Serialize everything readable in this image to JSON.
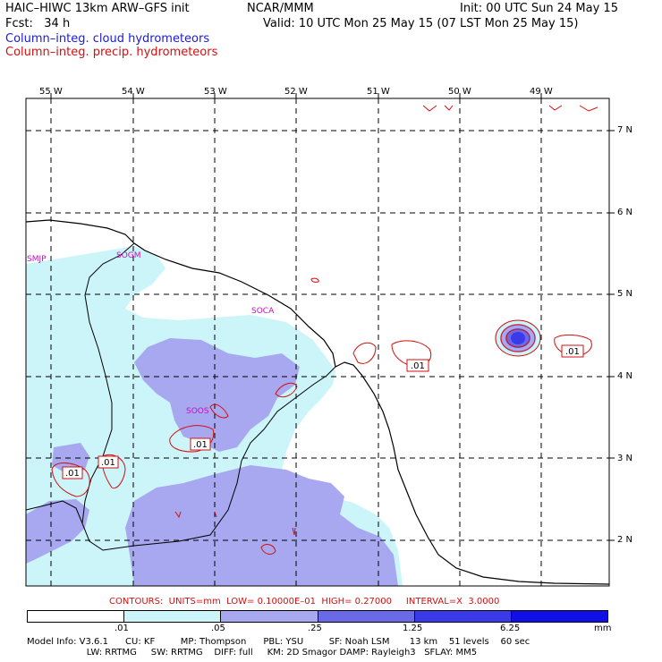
{
  "header": {
    "model": "HAIC–HIWC 13km ARW–GFS init",
    "org": "NCAR/MMM",
    "init": "Init: 00 UTC Sun 24 May 15",
    "fcst": "Fcst:   34 h",
    "valid": "Valid: 10 UTC Mon 25 May 15 (07 LST Mon 25 May 15)",
    "field1": "Column–integ. cloud hydrometeors",
    "field2": "Column–integ. precip. hydrometeors",
    "field1_color": "#1a1adc",
    "field2_color": "#d01010"
  },
  "map": {
    "lon_labels": [
      "55 W",
      "54 W",
      "53 W",
      "52 W",
      "51 W",
      "50 W",
      "49 W"
    ],
    "lat_labels": [
      "7 N",
      "6 N",
      "5 N",
      "4 N",
      "3 N",
      "2 N"
    ],
    "stations": [
      "SMJP",
      "SOGM",
      "SOCA",
      "SOOS"
    ],
    "contour_labels": [
      ".01",
      ".01",
      ".01",
      ".01",
      ".01"
    ]
  },
  "contours_line": "CONTOURS:  UNITS=mm  LOW= 0.10000E–01  HIGH= 0.27000     INTERVAL=X  3.0000",
  "colorbar": {
    "labels": [
      ".01",
      ".05",
      ".25",
      "1.25",
      "6.25",
      "mm"
    ],
    "colors": [
      "#ffffff",
      "#ccf5fa",
      "#a8a8f0",
      "#6a6ae8",
      "#3a3ae8",
      "#1010e6"
    ]
  },
  "model_info": {
    "line1": "Model Info: V3.6.1      CU: KF         MP: Thompson      PBL: YSU         SF: Noah LSM       13 km    51 levels    60 sec",
    "line2": "                     LW: RRTMG     SW: RRTMG    DIFF: full     KM: 2D Smagor DAMP: Rayleigh3   SFLAY: MM5"
  }
}
